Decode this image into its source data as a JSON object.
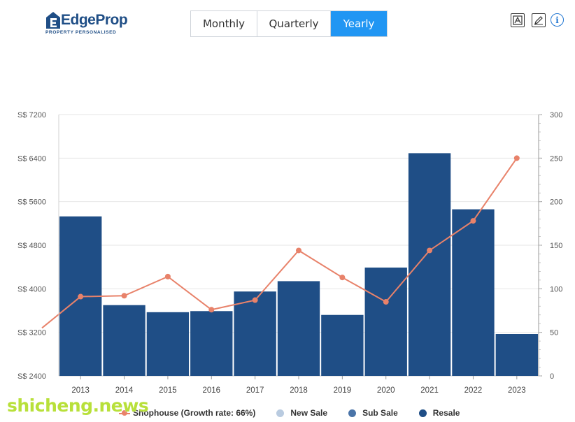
{
  "header": {
    "logo": {
      "brand": "EdgeProp",
      "tagline": "PROPERTY PERSONALISED"
    },
    "period_tabs": [
      {
        "label": "Monthly",
        "active": false
      },
      {
        "label": "Quarterly",
        "active": false
      },
      {
        "label": "Yearly",
        "active": true
      }
    ],
    "tools": {
      "export_icon": "image-export-icon",
      "edit_icon": "pencil-icon",
      "info_icon": "info-icon"
    }
  },
  "colors": {
    "accent": "#2196f3",
    "resale": "#1f4e86",
    "sub_sale": "#4a74a8",
    "new_sale": "#b9cbe0",
    "growth_line": "#e8826a"
  },
  "chart_data": {
    "type": "bar",
    "categories": [
      "2013",
      "2014",
      "2015",
      "2016",
      "2017",
      "2018",
      "2019",
      "2020",
      "2021",
      "2022",
      "2023"
    ],
    "y_left": {
      "ticks": [
        "S$ 2400",
        "S$ 3200",
        "S$ 4000",
        "S$ 4800",
        "S$ 5600",
        "S$ 6400",
        "S$ 7200"
      ],
      "range": [
        2400,
        7200
      ]
    },
    "y_right": {
      "ticks": [
        "0",
        "50",
        "100",
        "150",
        "200",
        "250",
        "300"
      ],
      "range": [
        0,
        300
      ]
    },
    "series": [
      {
        "name": "Resale",
        "type": "bar",
        "axis": "left",
        "values": [
          5330,
          3700,
          3570,
          3590,
          3950,
          4140,
          3520,
          4390,
          6490,
          5460,
          3170
        ]
      },
      {
        "name": "Shophouse (Growth rate: 66%)",
        "type": "line",
        "axis": "right",
        "values": [
          91,
          92,
          114,
          76,
          87,
          144,
          113,
          85,
          144,
          178,
          250
        ]
      }
    ],
    "line_start_value": 55,
    "grid": true,
    "legend": [
      {
        "label": "Shophouse (Growth rate: 66%)",
        "symbol": "line",
        "color": "#e8826a"
      },
      {
        "label": "New Sale",
        "symbol": "dot",
        "color": "#b9cbe0"
      },
      {
        "label": "Sub Sale",
        "symbol": "dot",
        "color": "#4a74a8"
      },
      {
        "label": "Resale",
        "symbol": "dot",
        "color": "#1f4e86"
      }
    ],
    "legend_position": "bottom"
  },
  "watermark": "shicheng.news"
}
